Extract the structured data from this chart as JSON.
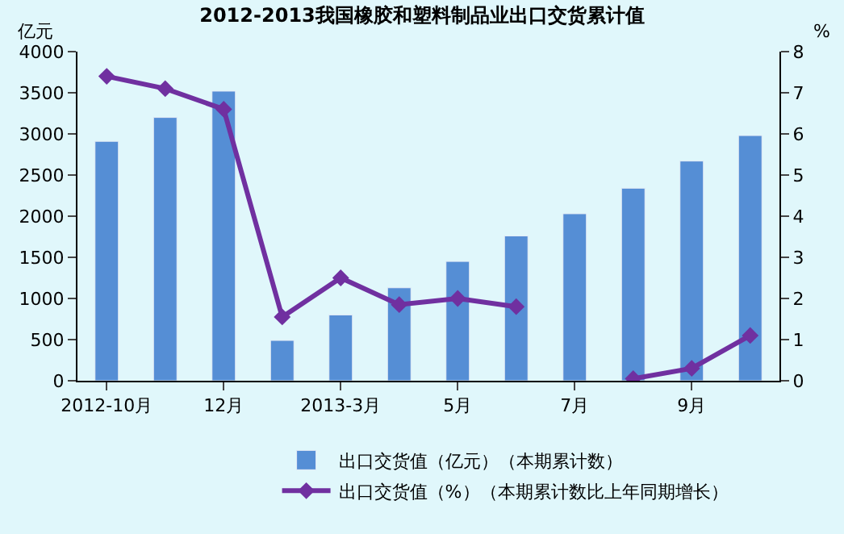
{
  "chart_data": {
    "type": "bar",
    "title": "2012-2013我国橡胶和塑料制品业出口交货累计值",
    "ylabel": "亿元",
    "y2label": "%",
    "categories": [
      "2012-10月",
      null,
      "12月",
      null,
      "2013-3月",
      null,
      "5月",
      null,
      "7月",
      null,
      "9月",
      null
    ],
    "series": [
      {
        "name": "出口交货值（亿元）（本期累计数）",
        "color": "#558ed5",
        "values": [
          2910,
          3200,
          3520,
          490,
          800,
          1130,
          1450,
          1760,
          2030,
          2340,
          2670,
          2980
        ]
      },
      {
        "name": "出口交货值（%）（本期累计数比上年同期增长）",
        "type": "line",
        "axis": "y2",
        "color": "#7030a0",
        "marker": "diamond",
        "values": [
          7.4,
          7.1,
          6.6,
          1.55,
          2.5,
          1.85,
          2.0,
          1.8,
          null,
          0.05,
          0.3,
          1.1
        ]
      }
    ],
    "ylim": [
      0,
      4000
    ],
    "yticks": [
      0,
      500,
      1000,
      1500,
      2000,
      2500,
      3000,
      3500,
      4000
    ],
    "y2lim": [
      0,
      8
    ],
    "y2ticks": [
      0,
      1,
      2,
      3,
      4,
      5,
      6,
      7,
      8
    ],
    "grid": false,
    "legend": "bottom"
  }
}
